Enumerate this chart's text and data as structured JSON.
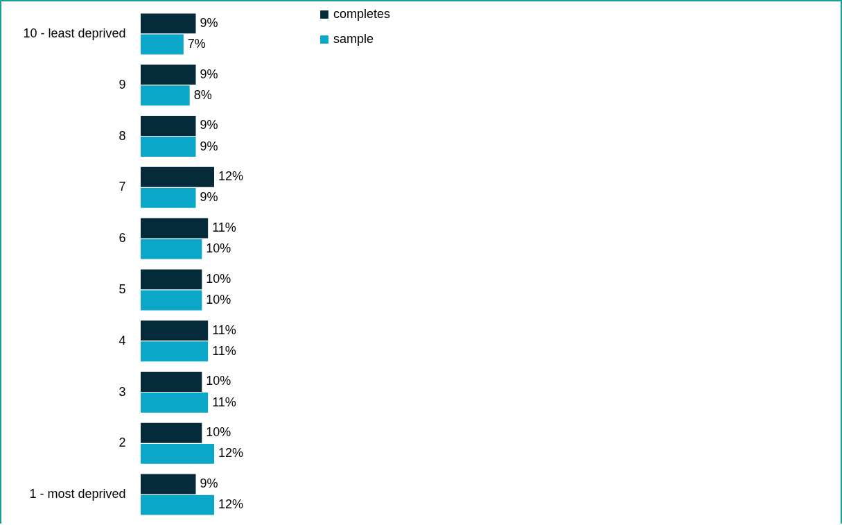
{
  "chart_data": {
    "type": "bar",
    "orientation": "horizontal",
    "categories": [
      "10 - least deprived",
      "9",
      "8",
      "7",
      "6",
      "5",
      "4",
      "3",
      "2",
      "1 - most deprived"
    ],
    "series": [
      {
        "name": "completes",
        "color": "#052a3a",
        "values": [
          9,
          9,
          9,
          12,
          11,
          10,
          11,
          10,
          10,
          9
        ],
        "value_labels": [
          "9%",
          "9%",
          "9%",
          "12%",
          "11%",
          "10%",
          "11%",
          "10%",
          "10%",
          "9%"
        ]
      },
      {
        "name": "sample",
        "color": "#0aa7c9",
        "values": [
          7,
          8,
          9,
          9,
          10,
          10,
          11,
          11,
          12,
          12
        ],
        "value_labels": [
          "7%",
          "8%",
          "9%",
          "9%",
          "10%",
          "10%",
          "11%",
          "11%",
          "12%",
          "12%"
        ]
      }
    ],
    "legend": "right"
  }
}
